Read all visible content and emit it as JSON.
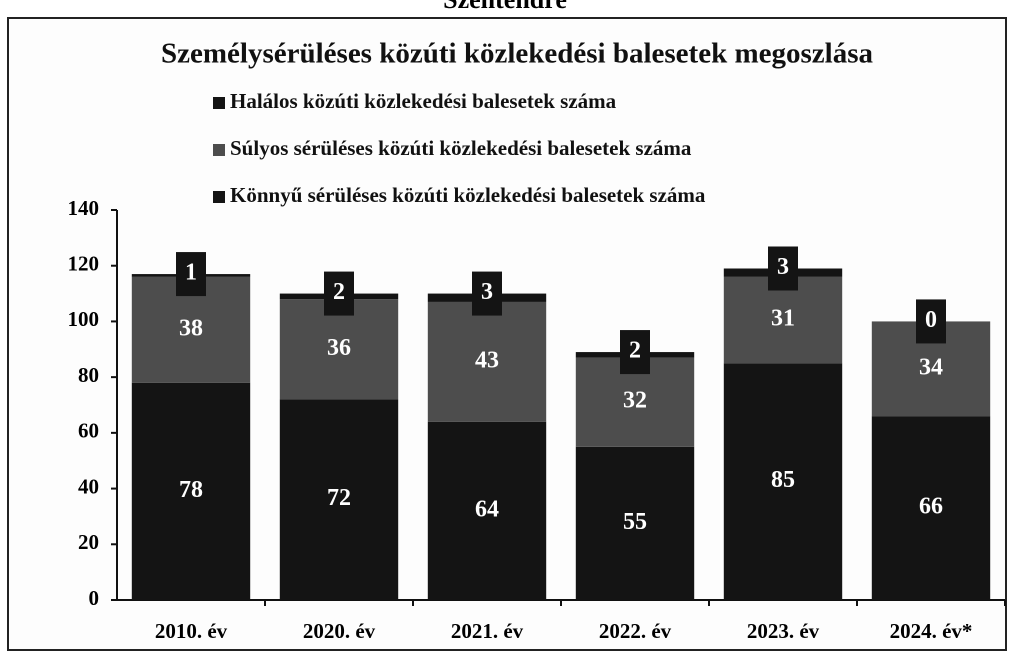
{
  "chart_data": {
    "type": "stacked_bar",
    "header": "Szentendre",
    "title": "Személysérüléses közúti közlekedési balesetek megoszlása",
    "categories": [
      "2010. év",
      "2020. év",
      "2021. év",
      "2022. év",
      "2023. év",
      "2024. év*"
    ],
    "series": [
      {
        "name": "Könnyű sérüléses közúti közlekedési balesetek száma",
        "color": "#141414",
        "values": [
          78,
          72,
          64,
          55,
          85,
          66
        ]
      },
      {
        "name": "Súlyos sérüléses közúti közlekedési balesetek száma",
        "color": "#4d4d4d",
        "values": [
          38,
          36,
          43,
          32,
          31,
          34
        ]
      },
      {
        "name": "Halálos közúti közlekedési balesetek száma",
        "color": "#141414",
        "values": [
          1,
          2,
          3,
          2,
          3,
          0
        ]
      }
    ],
    "ylim": [
      0,
      140
    ],
    "yticks": [
      0,
      20,
      40,
      60,
      80,
      100,
      120,
      140
    ]
  }
}
